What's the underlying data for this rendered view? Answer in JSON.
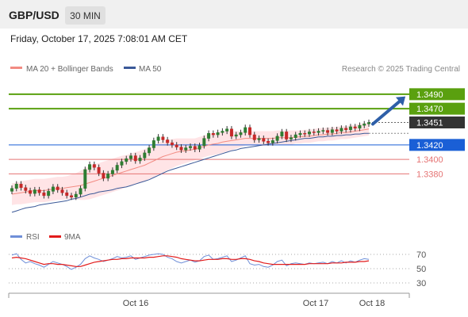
{
  "header": {
    "symbol": "GBP/USD",
    "timeframe": "30 MIN",
    "datetime": "Friday, October 17, 2025 7:08:01 AM CET"
  },
  "legend": {
    "ma20_label": "MA 20 + Bollinger Bands",
    "ma50_label": "MA 50",
    "credit": "Research © 2025 Trading Central"
  },
  "rsi_legend": {
    "rsi_label": "RSI",
    "ma_label": "9MA"
  },
  "colors": {
    "candle_up": "#2e7d32",
    "candle_down": "#c62828",
    "bollinger": "#ffcdd2",
    "ma20": "#f28b82",
    "ma50": "#3b5998",
    "target": "#5aa00f",
    "pivot": "#1a5fd6",
    "support": "#e57373",
    "last": "#333333",
    "arrow": "#2e5fa8",
    "rsi": "#6f8fd8",
    "rsi_ma": "#e21b1b"
  },
  "chart_data": {
    "type": "candlestick",
    "price": {
      "ylim": [
        1.3305,
        1.3515
      ],
      "last_price": 1.3451,
      "levels": [
        {
          "label": "1.3490",
          "value": 1.349,
          "kind": "target"
        },
        {
          "label": "1.3470",
          "value": 1.347,
          "kind": "target"
        },
        {
          "label": "1.3451",
          "value": 1.3451,
          "kind": "last"
        },
        {
          "label": "1.3420",
          "value": 1.342,
          "kind": "pivot"
        },
        {
          "label": "1.3400",
          "value": 1.34,
          "kind": "support"
        },
        {
          "label": "1.3380",
          "value": 1.338,
          "kind": "support"
        }
      ],
      "x_ticks": [
        "Oct 16",
        "Oct 17",
        "Oct 18"
      ],
      "series": [
        "MA 20 + Bollinger Bands",
        "MA 50"
      ],
      "closes": [
        1.336,
        1.3366,
        1.3361,
        1.3357,
        1.3353,
        1.3358,
        1.3354,
        1.335,
        1.3356,
        1.3362,
        1.3358,
        1.3354,
        1.335,
        1.3348,
        1.3352,
        1.336,
        1.3386,
        1.3393,
        1.3389,
        1.3381,
        1.3374,
        1.338,
        1.3385,
        1.3392,
        1.3397,
        1.3401,
        1.3405,
        1.3398,
        1.3402,
        1.3409,
        1.3416,
        1.3426,
        1.3431,
        1.3427,
        1.3423,
        1.342,
        1.3417,
        1.3413,
        1.3416,
        1.3418,
        1.3414,
        1.3419,
        1.3429,
        1.3436,
        1.3434,
        1.3437,
        1.3439,
        1.3442,
        1.3432,
        1.3434,
        1.3437,
        1.3444,
        1.3434,
        1.3427,
        1.3429,
        1.3425,
        1.3423,
        1.3426,
        1.3432,
        1.3438,
        1.3428,
        1.343,
        1.3434,
        1.3436,
        1.3435,
        1.3438,
        1.3437,
        1.3439,
        1.344,
        1.3437,
        1.3441,
        1.3439,
        1.3443,
        1.3441,
        1.3445,
        1.3443,
        1.3447,
        1.3449,
        1.3451
      ],
      "ma20": [
        1.3352,
        1.3353,
        1.3354,
        1.3355,
        1.3356,
        1.3357,
        1.3357,
        1.3357,
        1.3358,
        1.3359,
        1.336,
        1.336,
        1.3361,
        1.3362,
        1.3363,
        1.3364,
        1.3366,
        1.3368,
        1.337,
        1.3372,
        1.3374,
        1.3376,
        1.3378,
        1.338,
        1.3382,
        1.3384,
        1.3386,
        1.3388,
        1.339,
        1.3392,
        1.3395,
        1.3398,
        1.3401,
        1.3404,
        1.3406,
        1.3408,
        1.341,
        1.3411,
        1.3412,
        1.3413,
        1.3414,
        1.3416,
        1.3418,
        1.342,
        1.3421,
        1.3422,
        1.3424,
        1.3425,
        1.3426,
        1.3427,
        1.3428,
        1.3429,
        1.3429,
        1.3429,
        1.3429,
        1.3429,
        1.3429,
        1.3429,
        1.343,
        1.343,
        1.343,
        1.343,
        1.3431,
        1.3431,
        1.3432,
        1.3432,
        1.3433,
        1.3434,
        1.3434,
        1.3435,
        1.3435,
        1.3436,
        1.3437,
        1.3437,
        1.3438,
        1.3439,
        1.344,
        1.3441,
        1.3442
      ],
      "bb_width": [
        0.0015,
        0.0015,
        0.0016,
        0.0016,
        0.0016,
        0.0016,
        0.0016,
        0.0016,
        0.0016,
        0.0016,
        0.0016,
        0.0016,
        0.0016,
        0.0017,
        0.0018,
        0.002,
        0.0022,
        0.0023,
        0.0023,
        0.0023,
        0.0023,
        0.0023,
        0.0023,
        0.0023,
        0.0023,
        0.0022,
        0.0022,
        0.0022,
        0.0022,
        0.0022,
        0.0022,
        0.0022,
        0.0022,
        0.0022,
        0.0021,
        0.002,
        0.0019,
        0.0018,
        0.0017,
        0.0016,
        0.0015,
        0.0015,
        0.0015,
        0.0015,
        0.0015,
        0.0015,
        0.0015,
        0.0014,
        0.0013,
        0.0012,
        0.0011,
        0.001,
        0.001,
        0.001,
        0.001,
        0.001,
        0.001,
        0.001,
        0.001,
        0.001,
        0.001,
        0.001,
        0.0009,
        0.0009,
        0.0009,
        0.0009,
        0.0009,
        0.0009,
        0.0009,
        0.0009,
        0.0009,
        0.0009,
        0.0009,
        0.0009,
        0.0009,
        0.0009,
        0.0009,
        0.0009,
        0.0009
      ],
      "ma50": [
        1.3327,
        1.3329,
        1.3331,
        1.3333,
        1.3334,
        1.3335,
        1.3337,
        1.3338,
        1.3339,
        1.334,
        1.3341,
        1.3342,
        1.3343,
        1.3345,
        1.3346,
        1.3348,
        1.335,
        1.3352,
        1.3353,
        1.3355,
        1.3356,
        1.3357,
        1.3358,
        1.336,
        1.3361,
        1.3362,
        1.3364,
        1.3366,
        1.3368,
        1.337,
        1.3372,
        1.3375,
        1.3378,
        1.3381,
        1.3384,
        1.3386,
        1.3388,
        1.339,
        1.3392,
        1.3394,
        1.3396,
        1.3398,
        1.34,
        1.3402,
        1.3404,
        1.3406,
        1.3408,
        1.341,
        1.3412,
        1.3413,
        1.3415,
        1.3416,
        1.3417,
        1.3418,
        1.3419,
        1.342,
        1.3421,
        1.3422,
        1.3423,
        1.3424,
        1.3425,
        1.3426,
        1.3427,
        1.3428,
        1.3429,
        1.3429,
        1.343,
        1.3431,
        1.3431,
        1.3432,
        1.3432,
        1.3433,
        1.3433,
        1.3434,
        1.3434,
        1.3435,
        1.3435,
        1.3436,
        1.3436
      ]
    },
    "rsi": {
      "ylim": [
        20,
        80
      ],
      "levels": [
        70,
        50,
        30
      ],
      "values": [
        69,
        71,
        63,
        58,
        60,
        57,
        55,
        52,
        56,
        60,
        58,
        56,
        53,
        49,
        52,
        56,
        64,
        68,
        65,
        63,
        60,
        62,
        64,
        67,
        65,
        66,
        68,
        63,
        65,
        67,
        69,
        70,
        71,
        70,
        66,
        64,
        60,
        58,
        60,
        62,
        59,
        61,
        67,
        69,
        63,
        64,
        66,
        68,
        60,
        62,
        65,
        68,
        57,
        55,
        56,
        53,
        52,
        55,
        60,
        62,
        54,
        57,
        58,
        57,
        56,
        58,
        57,
        58,
        59,
        57,
        60,
        58,
        61,
        58,
        61,
        59,
        62,
        64,
        63
      ],
      "ma9": [
        65,
        66,
        65,
        64,
        62,
        60,
        58,
        56,
        57,
        57,
        56,
        56,
        55,
        54,
        53,
        53,
        55,
        57,
        59,
        60,
        61,
        62,
        63,
        63,
        64,
        64,
        65,
        65,
        65,
        65,
        66,
        66,
        67,
        68,
        68,
        67,
        66,
        64,
        63,
        62,
        61,
        61,
        62,
        63,
        63,
        63,
        64,
        64,
        63,
        63,
        64,
        64,
        63,
        61,
        60,
        58,
        57,
        56,
        56,
        56,
        56,
        56,
        56,
        56,
        56,
        57,
        57,
        57,
        57,
        57,
        58,
        58,
        58,
        59,
        59,
        59,
        60,
        60,
        61
      ]
    }
  }
}
